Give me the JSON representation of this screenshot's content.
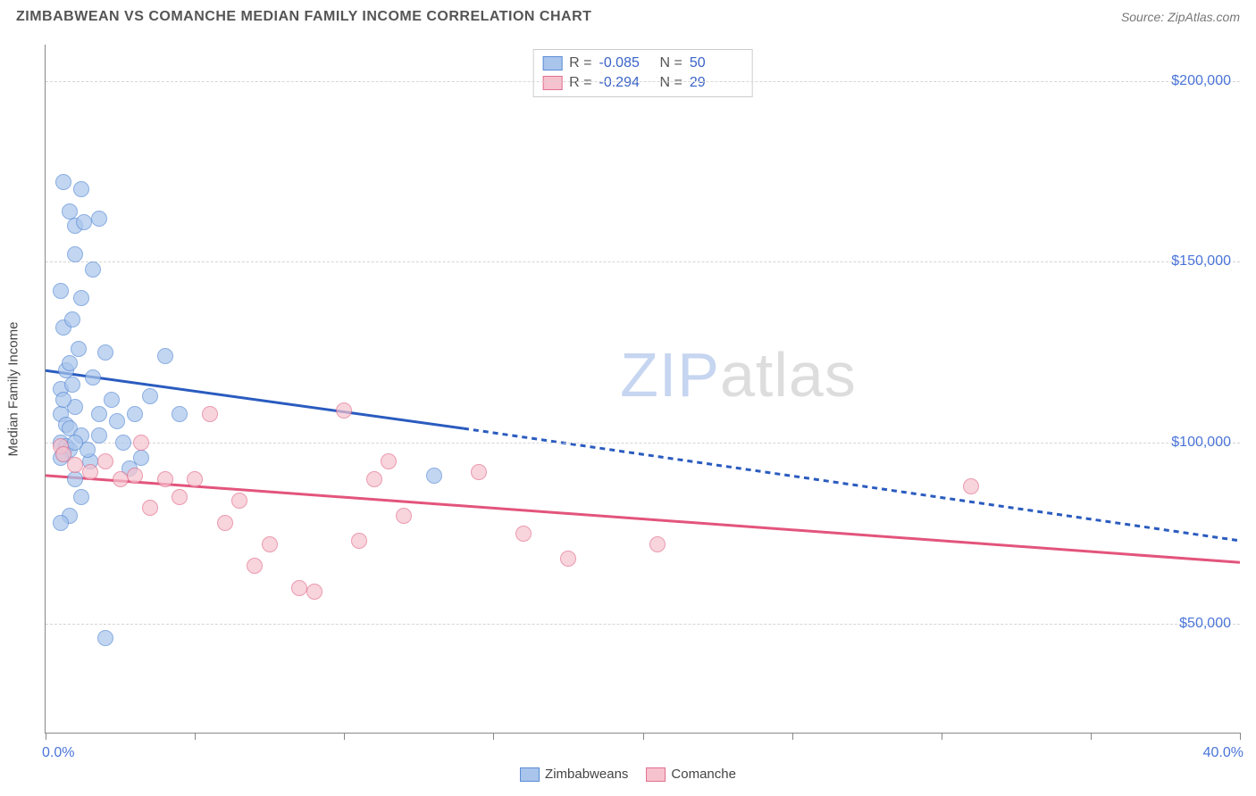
{
  "header": {
    "title": "ZIMBABWEAN VS COMANCHE MEDIAN FAMILY INCOME CORRELATION CHART",
    "source_prefix": "Source: ",
    "source": "ZipAtlas.com"
  },
  "watermark": {
    "part1": "ZIP",
    "part2": "atlas"
  },
  "chart": {
    "type": "scatter",
    "background_color": "#ffffff",
    "grid_color": "#d5d5d5",
    "axis_color": "#888888",
    "xlim": [
      0,
      40
    ],
    "ylim": [
      20000,
      210000
    ],
    "y_ticks": [
      50000,
      100000,
      150000,
      200000
    ],
    "y_tick_labels": [
      "$50,000",
      "$100,000",
      "$150,000",
      "$200,000"
    ],
    "x_tick_positions": [
      0,
      5,
      10,
      15,
      20,
      25,
      30,
      35,
      40
    ],
    "x_label_min": "0.0%",
    "x_label_max": "40.0%",
    "y_axis_title": "Median Family Income",
    "tick_label_color": "#4a74d8",
    "point_radius": 9,
    "series": [
      {
        "name": "Zimbabweans",
        "fill": "#a9c5ec",
        "stroke": "#5a8cd6",
        "R": "-0.085",
        "N": "50",
        "trend": {
          "solid": {
            "x1": 0,
            "y1": 120000,
            "x2": 14,
            "y2": 104000
          },
          "dashed": {
            "x1": 14,
            "y1": 104000,
            "x2": 40,
            "y2": 73000
          },
          "color": "#2a5bbf",
          "width": 3
        },
        "points": [
          [
            0.5,
            100000
          ],
          [
            0.6,
            97000
          ],
          [
            0.7,
            99000
          ],
          [
            0.8,
            98000
          ],
          [
            0.5,
            115000
          ],
          [
            0.7,
            120000
          ],
          [
            0.8,
            122000
          ],
          [
            0.5,
            108000
          ],
          [
            1.0,
            110000
          ],
          [
            0.6,
            132000
          ],
          [
            0.9,
            134000
          ],
          [
            1.2,
            140000
          ],
          [
            0.5,
            142000
          ],
          [
            1.0,
            160000
          ],
          [
            1.3,
            161000
          ],
          [
            1.8,
            162000
          ],
          [
            0.8,
            164000
          ],
          [
            0.6,
            172000
          ],
          [
            1.2,
            170000
          ],
          [
            1.0,
            152000
          ],
          [
            1.6,
            148000
          ],
          [
            2.0,
            125000
          ],
          [
            2.2,
            112000
          ],
          [
            2.4,
            106000
          ],
          [
            2.6,
            100000
          ],
          [
            1.5,
            95000
          ],
          [
            1.2,
            85000
          ],
          [
            0.8,
            80000
          ],
          [
            0.5,
            78000
          ],
          [
            1.8,
            102000
          ],
          [
            2.8,
            93000
          ],
          [
            3.0,
            108000
          ],
          [
            3.5,
            113000
          ],
          [
            4.0,
            124000
          ],
          [
            4.5,
            108000
          ],
          [
            3.2,
            96000
          ],
          [
            2.0,
            46000
          ],
          [
            13.0,
            91000
          ],
          [
            1.0,
            90000
          ],
          [
            0.7,
            105000
          ],
          [
            0.9,
            116000
          ],
          [
            1.1,
            126000
          ],
          [
            1.4,
            98000
          ],
          [
            0.6,
            112000
          ],
          [
            0.8,
            104000
          ],
          [
            1.2,
            102000
          ],
          [
            1.6,
            118000
          ],
          [
            1.0,
            100000
          ],
          [
            0.5,
            96000
          ],
          [
            1.8,
            108000
          ]
        ]
      },
      {
        "name": "Comanche",
        "fill": "#f6c2ce",
        "stroke": "#e2708e",
        "R": "-0.294",
        "N": "29",
        "trend": {
          "solid": {
            "x1": 0,
            "y1": 91000,
            "x2": 40,
            "y2": 67000
          },
          "color": "#e3547c",
          "width": 3
        },
        "points": [
          [
            0.5,
            99000
          ],
          [
            0.6,
            97000
          ],
          [
            1.0,
            94000
          ],
          [
            1.5,
            92000
          ],
          [
            2.0,
            95000
          ],
          [
            2.5,
            90000
          ],
          [
            3.0,
            91000
          ],
          [
            3.5,
            82000
          ],
          [
            4.0,
            90000
          ],
          [
            4.5,
            85000
          ],
          [
            5.0,
            90000
          ],
          [
            5.5,
            108000
          ],
          [
            6.0,
            78000
          ],
          [
            6.5,
            84000
          ],
          [
            7.0,
            66000
          ],
          [
            7.5,
            72000
          ],
          [
            8.5,
            60000
          ],
          [
            9.0,
            59000
          ],
          [
            10.0,
            109000
          ],
          [
            10.5,
            73000
          ],
          [
            11.0,
            90000
          ],
          [
            11.5,
            95000
          ],
          [
            12.0,
            80000
          ],
          [
            14.5,
            92000
          ],
          [
            16.0,
            75000
          ],
          [
            17.5,
            68000
          ],
          [
            20.5,
            72000
          ],
          [
            31.0,
            88000
          ],
          [
            3.2,
            100000
          ]
        ]
      }
    ],
    "stat_legend_labels": {
      "R": "R =",
      "N": "N ="
    }
  },
  "series_legend": {
    "items": [
      "Zimbabweans",
      "Comanche"
    ]
  }
}
